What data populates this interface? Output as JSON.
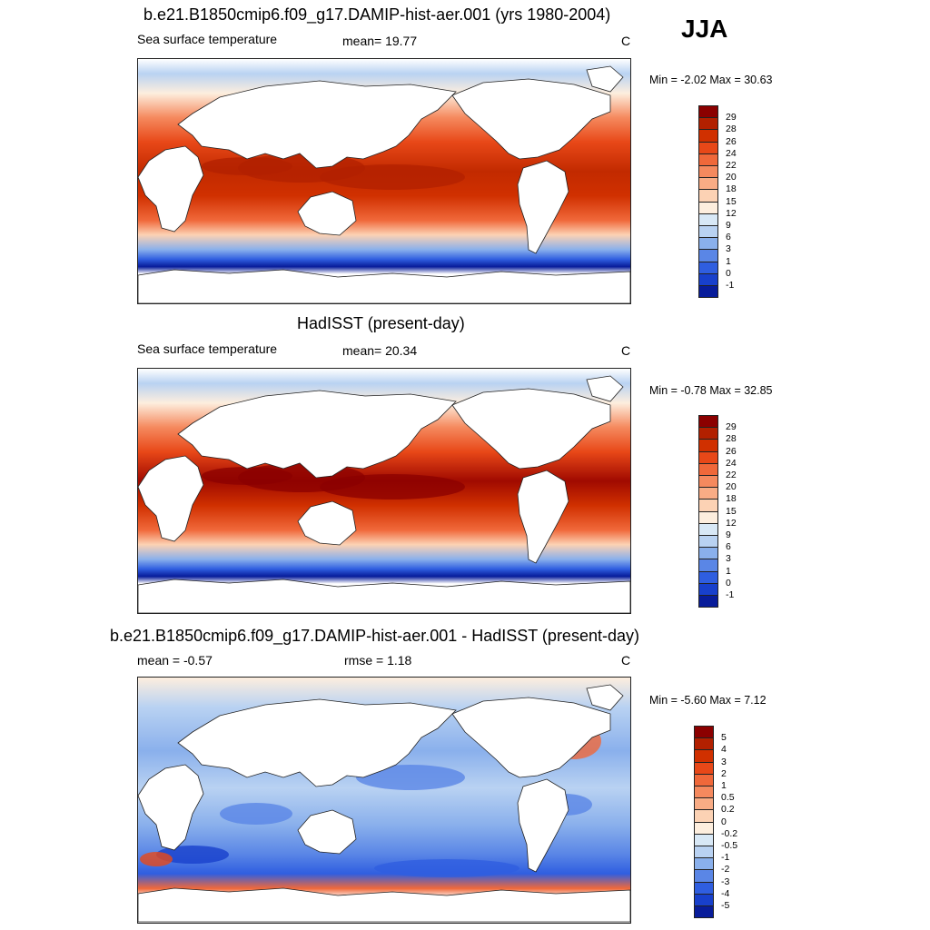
{
  "season": "JJA",
  "panels": [
    {
      "title": "b.e21.B1850cmip6.f09_g17.DAMIP-hist-aer.001 (yrs 1980-2004)",
      "left_text": "Sea surface temperature",
      "center_text": "mean=  19.77",
      "units": "C",
      "minmax": "Min =  -2.02 Max =  30.63",
      "colorbar": {
        "labels": [
          "29",
          "28",
          "26",
          "24",
          "22",
          "20",
          "18",
          "15",
          "12",
          "9",
          "6",
          "3",
          "1",
          "0",
          "-1"
        ],
        "colors": [
          "#8b0000",
          "#b22000",
          "#d03000",
          "#e84818",
          "#f0683a",
          "#f5895e",
          "#f9ac85",
          "#fcd2b4",
          "#fdeede",
          "#d8e8f6",
          "#b9d2f2",
          "#8ab0ec",
          "#5a86e6",
          "#2f5ee0",
          "#1840cc",
          "#081c9a"
        ]
      },
      "map_style": "sst"
    },
    {
      "title": "HadISST (present-day)",
      "left_text": "Sea surface temperature",
      "center_text": "mean=  20.34",
      "units": "C",
      "minmax": "Min =  -0.78 Max =  32.85",
      "colorbar": {
        "labels": [
          "29",
          "28",
          "26",
          "24",
          "22",
          "20",
          "18",
          "15",
          "12",
          "9",
          "6",
          "3",
          "1",
          "0",
          "-1"
        ],
        "colors": [
          "#8b0000",
          "#b22000",
          "#d03000",
          "#e84818",
          "#f0683a",
          "#f5895e",
          "#f9ac85",
          "#fcd2b4",
          "#fdeede",
          "#d8e8f6",
          "#b9d2f2",
          "#8ab0ec",
          "#5a86e6",
          "#2f5ee0",
          "#1840cc",
          "#081c9a"
        ]
      },
      "map_style": "sst_obs"
    },
    {
      "title": "b.e21.B1850cmip6.f09_g17.DAMIP-hist-aer.001 - HadISST (present-day)",
      "left_text": "mean =  -0.57",
      "center_text": "rmse =   1.18",
      "units": "C",
      "minmax": "Min =  -5.60 Max =   7.12",
      "colorbar": {
        "labels": [
          "5",
          "4",
          "3",
          "2",
          "1",
          "0.5",
          "0.2",
          "0",
          "-0.2",
          "-0.5",
          "-1",
          "-2",
          "-3",
          "-4",
          "-5"
        ],
        "colors": [
          "#8b0000",
          "#b22000",
          "#d03000",
          "#e84818",
          "#f0683a",
          "#f5895e",
          "#f9ac85",
          "#fcd2b4",
          "#fdeede",
          "#d8e8f6",
          "#b9d2f2",
          "#8ab0ec",
          "#5a86e6",
          "#2f5ee0",
          "#1840cc",
          "#081c9a"
        ]
      },
      "map_style": "diff"
    }
  ]
}
